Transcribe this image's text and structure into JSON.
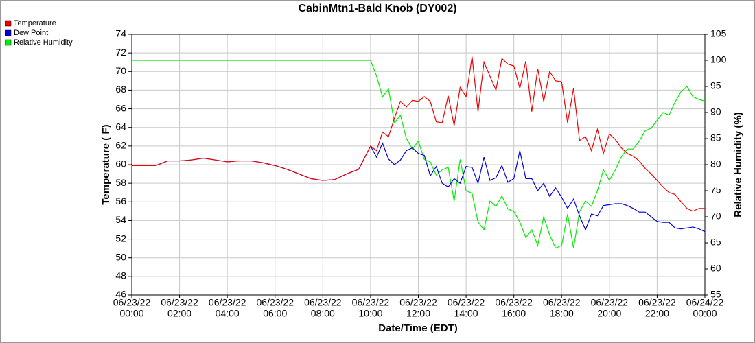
{
  "chart_data": {
    "type": "line",
    "title": "CabinMtn1-Bald Knob (DY002)",
    "x_label": "Date/Time (EDT)",
    "y_label": "Temperature ( F)",
    "y2_label": "Relative Humidity (%)",
    "grid": true,
    "legend": "top-left",
    "xlim": [
      0,
      24
    ],
    "xticks": [
      {
        "value": 0,
        "date": "06/23/22",
        "label": "00:00"
      },
      {
        "value": 2,
        "date": "06/23/22",
        "label": "02:00"
      },
      {
        "value": 4,
        "date": "06/23/22",
        "label": "04:00"
      },
      {
        "value": 6,
        "date": "06/23/22",
        "label": "06:00"
      },
      {
        "value": 8,
        "date": "06/23/22",
        "label": "08:00"
      },
      {
        "value": 10,
        "date": "06/23/22",
        "label": "10:00"
      },
      {
        "value": 12,
        "date": "06/23/22",
        "label": "12:00"
      },
      {
        "value": 14,
        "date": "06/23/22",
        "label": "14:00"
      },
      {
        "value": 16,
        "date": "06/23/22",
        "label": "16:00"
      },
      {
        "value": 18,
        "date": "06/23/22",
        "label": "18:00"
      },
      {
        "value": 20,
        "date": "06/23/22",
        "label": "20:00"
      },
      {
        "value": 22,
        "date": "06/23/22",
        "label": "22:00"
      },
      {
        "value": 24,
        "date": "06/24/22",
        "label": "00:00"
      }
    ],
    "ylim": [
      46,
      74
    ],
    "yticks": [
      46,
      48,
      50,
      52,
      54,
      56,
      58,
      60,
      62,
      64,
      66,
      68,
      70,
      72,
      74
    ],
    "y2lim": [
      55,
      105
    ],
    "y2ticks": [
      55,
      60,
      65,
      70,
      75,
      80,
      85,
      90,
      95,
      100,
      105
    ],
    "x": [
      0,
      0.5,
      1,
      1.5,
      2,
      2.5,
      3,
      3.5,
      4,
      4.5,
      5,
      5.5,
      6,
      6.5,
      7,
      7.5,
      8,
      8.5,
      9,
      9.5,
      10,
      10.25,
      10.5,
      10.75,
      11,
      11.25,
      11.5,
      11.75,
      12,
      12.25,
      12.5,
      12.75,
      13,
      13.25,
      13.5,
      13.75,
      14,
      14.25,
      14.5,
      14.75,
      15,
      15.25,
      15.5,
      15.75,
      16,
      16.25,
      16.5,
      16.75,
      17,
      17.25,
      17.5,
      17.75,
      18,
      18.25,
      18.5,
      18.75,
      19,
      19.25,
      19.5,
      19.75,
      20,
      20.25,
      20.5,
      20.75,
      21,
      21.25,
      21.5,
      21.75,
      22,
      22.25,
      22.5,
      22.75,
      23,
      23.25,
      23.5,
      23.75,
      24
    ],
    "series": [
      {
        "name": "Relative Humidity",
        "color": "#00ee00",
        "axis": "y2",
        "values": [
          100,
          100,
          100,
          100,
          100,
          100,
          100,
          100,
          100,
          100,
          100,
          100,
          100,
          100,
          100,
          100,
          100,
          100,
          100,
          100,
          100,
          97,
          93,
          94.5,
          88,
          89.5,
          85,
          83,
          84.5,
          81,
          80.5,
          78,
          79,
          79.5,
          73,
          81,
          75,
          74.5,
          69,
          67.5,
          73,
          72,
          74,
          71.5,
          71,
          69,
          66,
          67.5,
          64.5,
          70,
          66.5,
          64,
          64.5,
          70.5,
          64,
          71,
          73,
          72,
          75,
          79,
          77,
          79,
          81.5,
          83,
          83,
          84.5,
          86.5,
          87,
          88.5,
          90,
          89.5,
          92,
          94,
          95,
          93,
          92.5,
          92.2
        ]
      },
      {
        "name": "Dew Point",
        "color": "#0000dd",
        "values": [
          59.9,
          59.9,
          59.9,
          60.4,
          60.4,
          60.5,
          60.7,
          60.5,
          60.3,
          60.4,
          60.4,
          60.2,
          59.9,
          59.5,
          59.0,
          58.5,
          58.3,
          58.4,
          59.0,
          59.5,
          62.0,
          60.8,
          62.3,
          60.6,
          60.0,
          60.5,
          61.5,
          61.8,
          61.2,
          61.0,
          58.8,
          59.8,
          58.0,
          57.6,
          58.5,
          58.0,
          59.8,
          59.7,
          58.0,
          60.8,
          58.3,
          58.6,
          59.9,
          58.1,
          58.5,
          61.5,
          58.5,
          58.5,
          57.2,
          58.0,
          56.6,
          57.5,
          56.5,
          55.3,
          56.3,
          54.5,
          53.0,
          54.7,
          54.5,
          55.6,
          55.7,
          55.8,
          55.8,
          55.6,
          55.3,
          54.9,
          54.9,
          54.4,
          53.9,
          53.8,
          53.8,
          53.2,
          53.1,
          53.2,
          53.3,
          53.1,
          52.8
        ]
      },
      {
        "name": "Temperature",
        "color": "#ee0000",
        "values": [
          59.9,
          59.9,
          59.9,
          60.4,
          60.4,
          60.5,
          60.7,
          60.5,
          60.3,
          60.4,
          60.4,
          60.2,
          59.9,
          59.5,
          59.0,
          58.5,
          58.3,
          58.4,
          59.0,
          59.5,
          62.0,
          61.5,
          63.5,
          63.0,
          65.0,
          66.8,
          66.2,
          66.9,
          66.8,
          67.3,
          66.8,
          64.6,
          64.5,
          67.4,
          64.2,
          68.3,
          67.3,
          71.6,
          65.7,
          71.0,
          69.5,
          68.0,
          71.4,
          70.8,
          70.6,
          68.2,
          71.1,
          65.7,
          70.3,
          66.8,
          70.0,
          69.0,
          68.9,
          64.5,
          68.2,
          62.6,
          63.0,
          61.5,
          63.8,
          61.2,
          63.3,
          62.7,
          61.8,
          61.2,
          60.9,
          60.4,
          59.6,
          59.0,
          58.3,
          57.6,
          57.0,
          56.8,
          56.0,
          55.3,
          55.0,
          55.3,
          55.3
        ]
      }
    ]
  }
}
